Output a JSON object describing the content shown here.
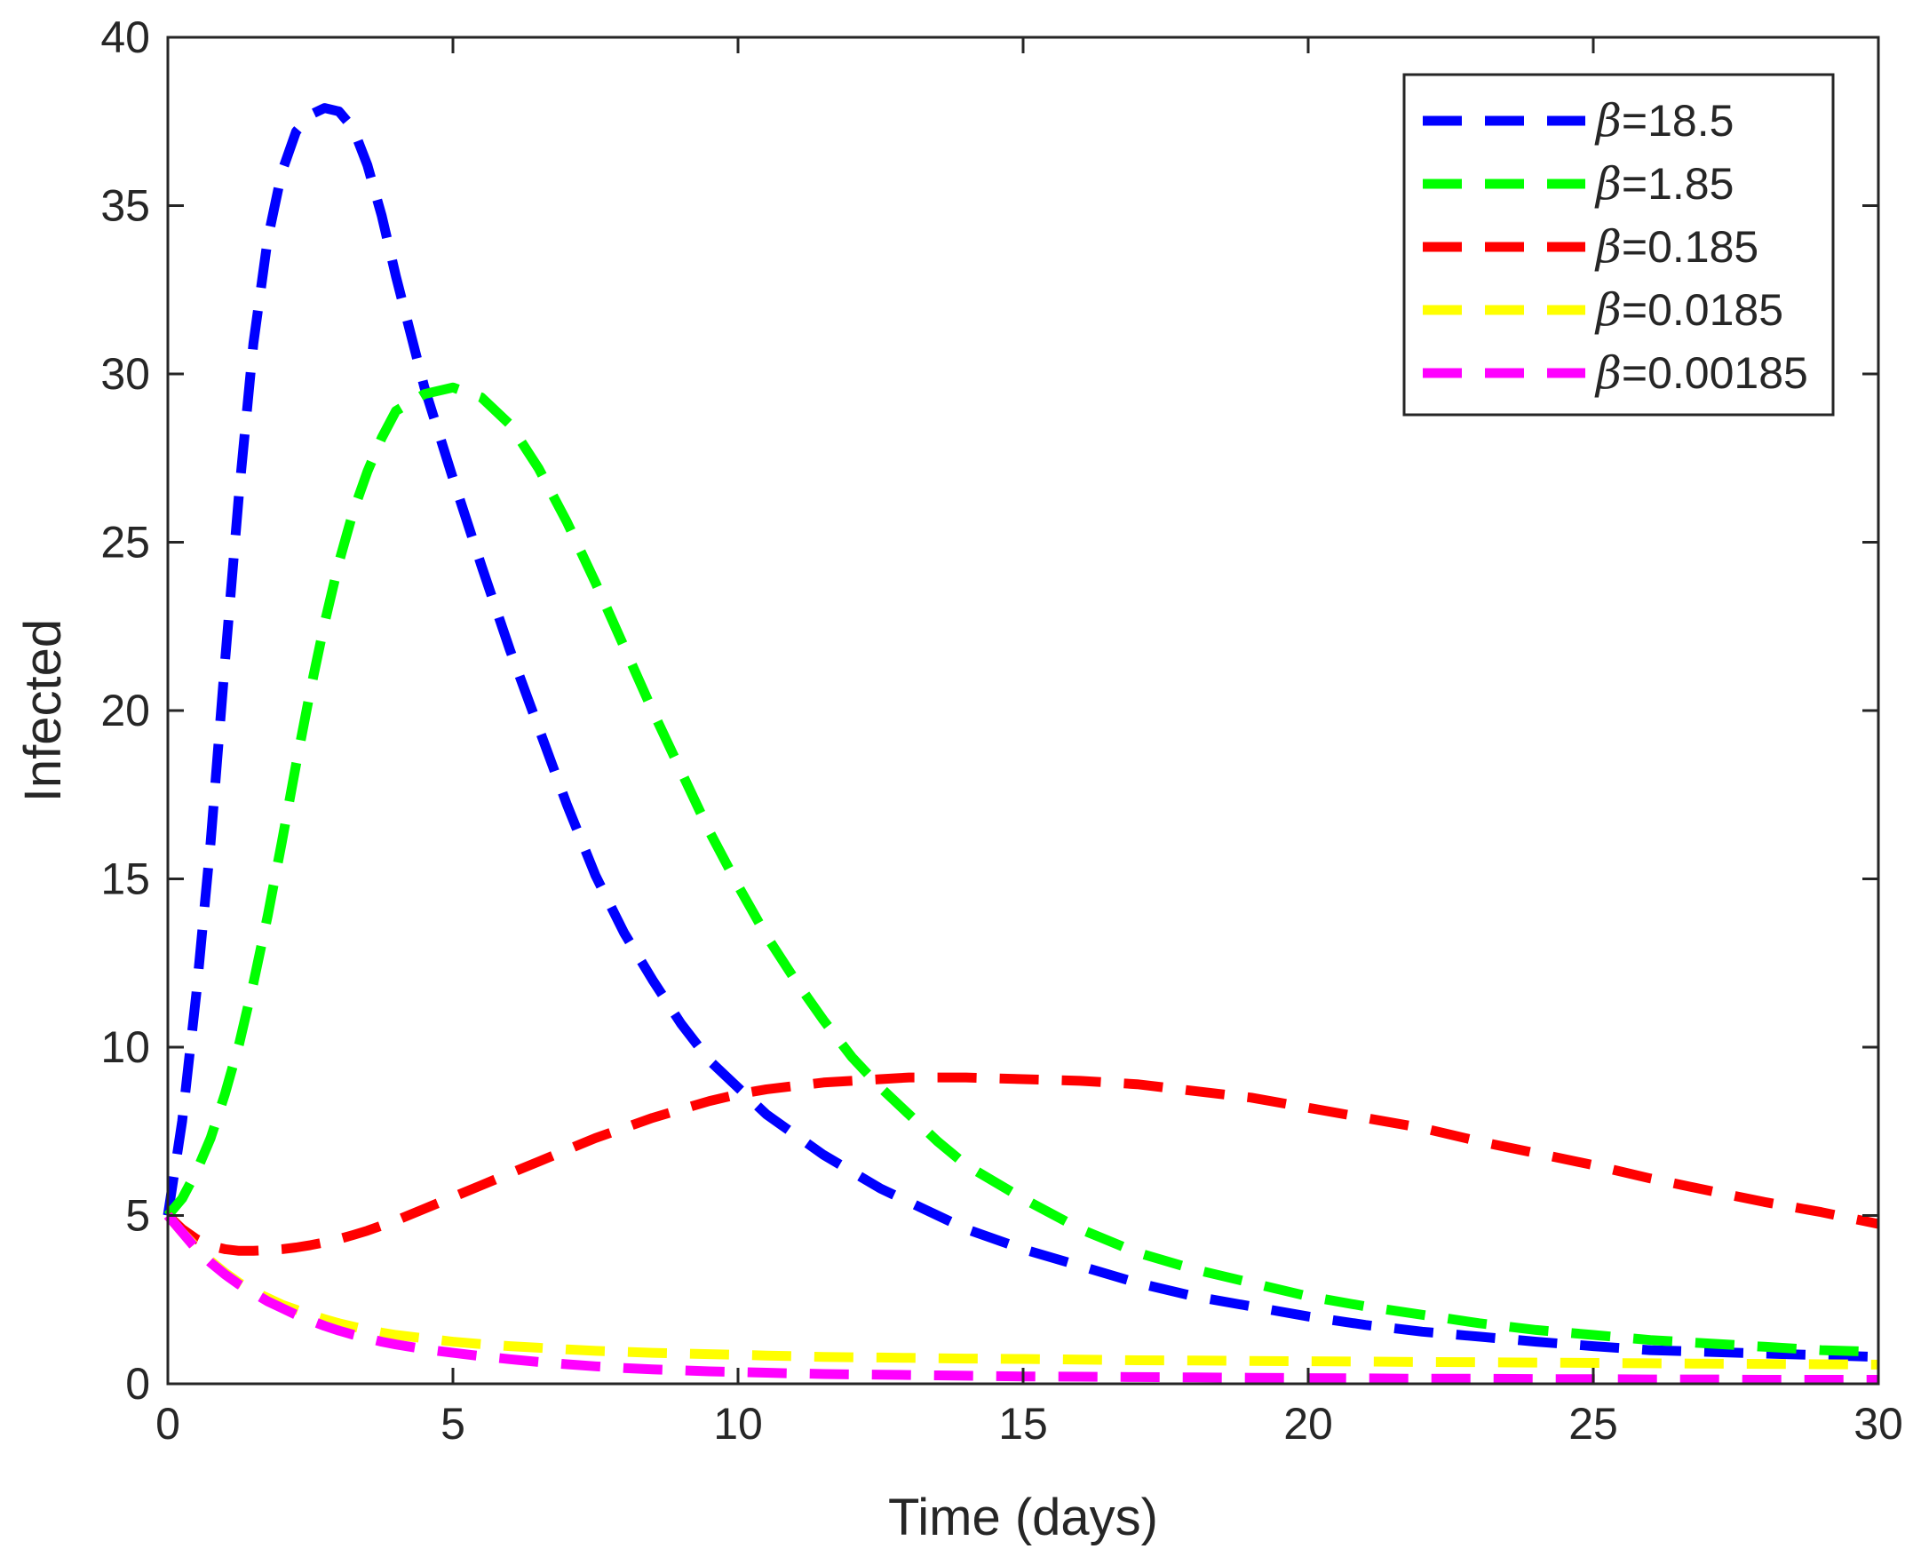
{
  "chart_data": {
    "type": "line",
    "title": "",
    "xlabel": "Time (days)",
    "ylabel": "Infected",
    "xlim": [
      0,
      30
    ],
    "ylim": [
      0,
      40
    ],
    "xticks": [
      0,
      5,
      10,
      15,
      20,
      25,
      30
    ],
    "yticks": [
      0,
      5,
      10,
      15,
      20,
      25,
      30,
      35,
      40
    ],
    "grid": false,
    "legend_position": "top-right",
    "line_style": "dashed",
    "x": [
      0,
      0.25,
      0.5,
      0.75,
      1,
      1.25,
      1.5,
      1.75,
      2,
      2.25,
      2.5,
      2.75,
      3,
      3.25,
      3.5,
      3.75,
      4,
      4.5,
      5,
      5.5,
      6,
      6.5,
      7,
      7.5,
      8,
      8.5,
      9,
      9.5,
      10,
      10.5,
      11,
      11.5,
      12,
      12.5,
      13,
      13.5,
      14,
      15,
      16,
      17,
      18,
      19,
      20,
      21,
      22,
      23,
      24,
      25,
      26,
      27,
      28,
      29,
      30
    ],
    "series": [
      {
        "name": "β=18.5",
        "symbol": "β",
        "value_text": "=18.5",
        "color": "#0000ff",
        "values": [
          5.0,
          7.8,
          11.6,
          16.1,
          21.4,
          26.5,
          30.9,
          34.0,
          36.0,
          37.2,
          37.7,
          37.9,
          37.8,
          37.3,
          36.2,
          34.7,
          32.9,
          29.6,
          26.9,
          24.3,
          21.8,
          19.5,
          17.2,
          15.1,
          13.4,
          12.0,
          10.7,
          9.6,
          8.8,
          8.0,
          7.4,
          6.8,
          6.3,
          5.8,
          5.4,
          5.0,
          4.6,
          4.0,
          3.5,
          3.0,
          2.6,
          2.3,
          2.0,
          1.75,
          1.55,
          1.4,
          1.25,
          1.12,
          1.0,
          0.95,
          0.9,
          0.85,
          0.8
        ]
      },
      {
        "name": "β=1.85",
        "symbol": "β",
        "value_text": "=1.85",
        "color": "#00ff00",
        "values": [
          5.0,
          5.5,
          6.3,
          7.3,
          8.6,
          10.1,
          11.9,
          13.9,
          16.1,
          18.4,
          20.6,
          22.6,
          24.4,
          25.9,
          27.1,
          28.1,
          28.9,
          29.4,
          29.6,
          29.3,
          28.5,
          27.2,
          25.6,
          23.8,
          21.9,
          20.0,
          18.2,
          16.4,
          14.8,
          13.3,
          12.0,
          10.8,
          9.7,
          8.8,
          8.0,
          7.2,
          6.5,
          5.5,
          4.6,
          3.9,
          3.4,
          3.0,
          2.6,
          2.3,
          2.05,
          1.8,
          1.6,
          1.45,
          1.3,
          1.2,
          1.1,
          1.0,
          0.95
        ]
      },
      {
        "name": "β=0.185",
        "symbol": "β",
        "value_text": "=0.185",
        "color": "#ff0000",
        "values": [
          5.0,
          4.6,
          4.3,
          4.1,
          4.0,
          3.95,
          3.95,
          3.97,
          4.0,
          4.05,
          4.12,
          4.2,
          4.3,
          4.42,
          4.55,
          4.7,
          4.85,
          5.2,
          5.55,
          5.9,
          6.25,
          6.6,
          6.95,
          7.3,
          7.6,
          7.9,
          8.15,
          8.4,
          8.6,
          8.75,
          8.85,
          8.95,
          9.0,
          9.05,
          9.1,
          9.1,
          9.1,
          9.05,
          9.0,
          8.9,
          8.7,
          8.5,
          8.2,
          7.9,
          7.6,
          7.2,
          6.85,
          6.5,
          6.1,
          5.75,
          5.4,
          5.1,
          4.75
        ]
      },
      {
        "name": "β=0.0185",
        "symbol": "β",
        "value_text": "=0.0185",
        "color": "#ffff00",
        "values": [
          5.0,
          4.5,
          4.05,
          3.65,
          3.3,
          3.0,
          2.75,
          2.55,
          2.35,
          2.2,
          2.05,
          1.92,
          1.8,
          1.7,
          1.6,
          1.52,
          1.45,
          1.35,
          1.25,
          1.18,
          1.12,
          1.07,
          1.02,
          0.98,
          0.95,
          0.92,
          0.9,
          0.88,
          0.86,
          0.84,
          0.82,
          0.8,
          0.79,
          0.78,
          0.77,
          0.76,
          0.75,
          0.74,
          0.72,
          0.7,
          0.69,
          0.68,
          0.67,
          0.66,
          0.65,
          0.64,
          0.63,
          0.62,
          0.61,
          0.6,
          0.59,
          0.58,
          0.57
        ]
      },
      {
        "name": "β=0.00185",
        "symbol": "β",
        "value_text": "=0.00185",
        "color": "#ff00ff",
        "values": [
          5.0,
          4.5,
          4.0,
          3.6,
          3.25,
          2.95,
          2.7,
          2.45,
          2.25,
          2.05,
          1.88,
          1.72,
          1.58,
          1.46,
          1.35,
          1.25,
          1.17,
          1.03,
          0.92,
          0.82,
          0.73,
          0.65,
          0.58,
          0.52,
          0.47,
          0.43,
          0.4,
          0.37,
          0.35,
          0.33,
          0.31,
          0.29,
          0.28,
          0.27,
          0.26,
          0.25,
          0.24,
          0.22,
          0.21,
          0.2,
          0.19,
          0.18,
          0.17,
          0.16,
          0.15,
          0.15,
          0.14,
          0.14,
          0.13,
          0.13,
          0.12,
          0.12,
          0.12
        ]
      }
    ]
  }
}
